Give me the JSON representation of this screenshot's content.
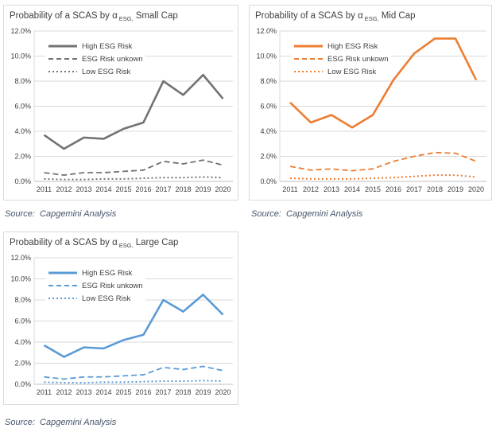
{
  "chart_data": [
    {
      "type": "line",
      "title_prefix": "Probability of a SCAS by α",
      "title_sub": "ESG,",
      "title_suffix": "Small Cap",
      "color": "#767171",
      "x": [
        "2011",
        "2012",
        "2013",
        "2014",
        "2015",
        "2016",
        "2017",
        "2018",
        "2019",
        "2020"
      ],
      "ylim": [
        0,
        12
      ],
      "yticks": [
        0,
        2,
        4,
        6,
        8,
        10,
        12
      ],
      "ytick_labels": [
        "0.0%",
        "2.0%",
        "4.0%",
        "6.0%",
        "8.0%",
        "10.0%",
        "12.0%"
      ],
      "grid": true,
      "legend_position": "inside-top-left",
      "series": [
        {
          "name": "High ESG Risk",
          "style": "solid",
          "values": [
            3.7,
            2.6,
            3.5,
            3.4,
            4.2,
            4.7,
            8.0,
            6.9,
            8.5,
            6.6
          ]
        },
        {
          "name": "ESG Risk unkown",
          "style": "dashed",
          "values": [
            0.7,
            0.5,
            0.7,
            0.7,
            0.8,
            0.9,
            1.6,
            1.4,
            1.7,
            1.3
          ]
        },
        {
          "name": "Low ESG Risk",
          "style": "dotted",
          "values": [
            0.2,
            0.15,
            0.15,
            0.2,
            0.2,
            0.25,
            0.3,
            0.3,
            0.35,
            0.3
          ]
        }
      ],
      "source": "Source:  Capgemini Analysis"
    },
    {
      "type": "line",
      "title_prefix": "Probability of a SCAS by α",
      "title_sub": "ESG,",
      "title_suffix": "Mid Cap",
      "color": "#ED7D31",
      "x": [
        "2011",
        "2012",
        "2013",
        "2014",
        "2015",
        "2016",
        "2017",
        "2018",
        "2019",
        "2020"
      ],
      "ylim": [
        0,
        12
      ],
      "yticks": [
        0,
        2,
        4,
        6,
        8,
        10,
        12
      ],
      "ytick_labels": [
        "0.0%",
        "2.0%",
        "4.0%",
        "6.0%",
        "8.0%",
        "10.0%",
        "12.0%"
      ],
      "grid": true,
      "legend_position": "inside-top-left",
      "series": [
        {
          "name": "High ESG Risk",
          "style": "solid",
          "values": [
            6.3,
            4.7,
            5.3,
            4.3,
            5.3,
            8.1,
            10.2,
            11.4,
            11.4,
            8.1
          ]
        },
        {
          "name": "ESG Risk unkown",
          "style": "dashed",
          "values": [
            1.2,
            0.9,
            1.0,
            0.85,
            1.0,
            1.6,
            2.0,
            2.3,
            2.25,
            1.6
          ]
        },
        {
          "name": "Low ESG Risk",
          "style": "dotted",
          "values": [
            0.25,
            0.2,
            0.2,
            0.2,
            0.25,
            0.3,
            0.4,
            0.5,
            0.5,
            0.35
          ]
        }
      ],
      "source": "Source:  Capgemini Analysis"
    },
    {
      "type": "line",
      "title_prefix": "Probability of a SCAS by α",
      "title_sub": "ESG,",
      "title_suffix": "Large Cap",
      "color": "#5B9BD5",
      "x": [
        "2011",
        "2012",
        "2013",
        "2014",
        "2015",
        "2016",
        "2017",
        "2018",
        "2019",
        "2020"
      ],
      "ylim": [
        0,
        12
      ],
      "yticks": [
        0,
        2,
        4,
        6,
        8,
        10,
        12
      ],
      "ytick_labels": [
        "0.0%",
        "2.0%",
        "4.0%",
        "6.0%",
        "8.0%",
        "10.0%",
        "12.0%"
      ],
      "grid": true,
      "legend_position": "inside-top-left",
      "series": [
        {
          "name": "High ESG Risk",
          "style": "solid",
          "values": [
            3.7,
            2.6,
            3.5,
            3.4,
            4.2,
            4.7,
            8.0,
            6.9,
            8.5,
            6.6
          ]
        },
        {
          "name": "ESG Risk unkown",
          "style": "dashed",
          "values": [
            0.7,
            0.5,
            0.7,
            0.7,
            0.8,
            0.9,
            1.6,
            1.4,
            1.7,
            1.3
          ]
        },
        {
          "name": "Low ESG Risk",
          "style": "dotted",
          "values": [
            0.2,
            0.15,
            0.15,
            0.2,
            0.2,
            0.25,
            0.3,
            0.3,
            0.35,
            0.3
          ]
        }
      ],
      "source": "Source:  Capgemini Analysis"
    }
  ],
  "style": {
    "grid_color": "#D9D9D9",
    "axis_color": "#BFBFBF",
    "tick_label_color": "#404040",
    "title_color": "#404040",
    "source_color": "#44546A"
  }
}
